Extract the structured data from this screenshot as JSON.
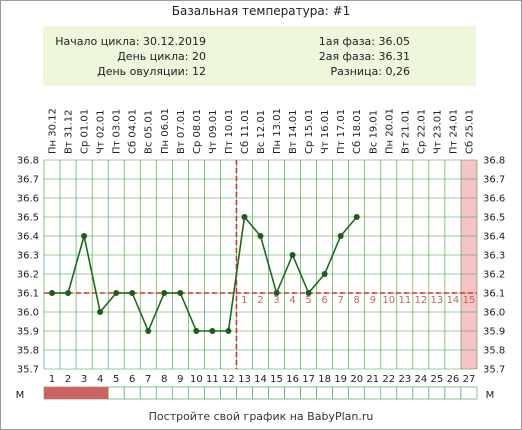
{
  "title": "Базальная температура: #1",
  "info": {
    "left": [
      {
        "label": "Начало цикла:",
        "value": "30.12.2019"
      },
      {
        "label": "День цикла:",
        "value": "20"
      },
      {
        "label": "День овуляции:",
        "value": "12"
      }
    ],
    "right": [
      {
        "label": "1ая фаза:",
        "value": "36.05"
      },
      {
        "label": "2ая фаза:",
        "value": "36.31"
      },
      {
        "label": "Разница:",
        "value": "0,26"
      }
    ]
  },
  "footer": "Постройте свой график на BabyPlan.ru",
  "colors": {
    "line": "#1a6b1a",
    "point": "#1f5a1f",
    "coverline": "#d83030",
    "grid": "#3f9a3f",
    "highlight": "#f6c4c4",
    "period": "#c86464",
    "phase_number": "#c86464"
  },
  "chart_data": {
    "type": "line",
    "title": "Базальная температура: #1",
    "date_labels": [
      "Пн 30.12",
      "Вт 31.12",
      "Ср 01.01",
      "Чт 02.01",
      "Пт 03.01",
      "Сб 04.01",
      "Вс 05.01",
      "Пн 06.01",
      "Вт 07.01",
      "Ср 08.01",
      "Чт 09.01",
      "Пт 10.01",
      "Сб 11.01",
      "Вс 12.01",
      "Пн 13.01",
      "Вт 14.01",
      "Ср 15.01",
      "Чт 16.01",
      "Пт 17.01",
      "Сб 18.01",
      "Вс 19.01",
      "Пн 20.01",
      "Вт 21.01",
      "Ср 22.01",
      "Чт 23.01",
      "Пт 24.01",
      "Сб 25.01"
    ],
    "days": [
      1,
      2,
      3,
      4,
      5,
      6,
      7,
      8,
      9,
      10,
      11,
      12,
      13,
      14,
      15,
      16,
      17,
      18,
      19,
      20,
      21,
      22,
      23,
      24,
      25,
      26,
      27
    ],
    "temperatures": [
      36.1,
      36.1,
      36.4,
      36.0,
      36.1,
      36.1,
      35.9,
      36.1,
      36.1,
      35.9,
      35.9,
      35.9,
      36.5,
      36.4,
      36.1,
      36.3,
      36.1,
      36.2,
      36.4,
      36.5
    ],
    "y_ticks": [
      "36.8",
      "36.7",
      "36.6",
      "36.5",
      "36.4",
      "36.3",
      "36.2",
      "36.1",
      "36.0",
      "35.9",
      "35.8",
      "35.7"
    ],
    "ylim": [
      35.7,
      36.8
    ],
    "coverline": 36.1,
    "ovulation_day": 12,
    "phase2_numbers": [
      "1",
      "2",
      "3",
      "4",
      "5",
      "6",
      "7",
      "8",
      "9",
      "10",
      "11",
      "12",
      "13",
      "14",
      "15"
    ],
    "highlight_day": 27,
    "period_days": [
      1,
      2,
      3,
      4
    ],
    "period_label": "М",
    "grid": true
  }
}
